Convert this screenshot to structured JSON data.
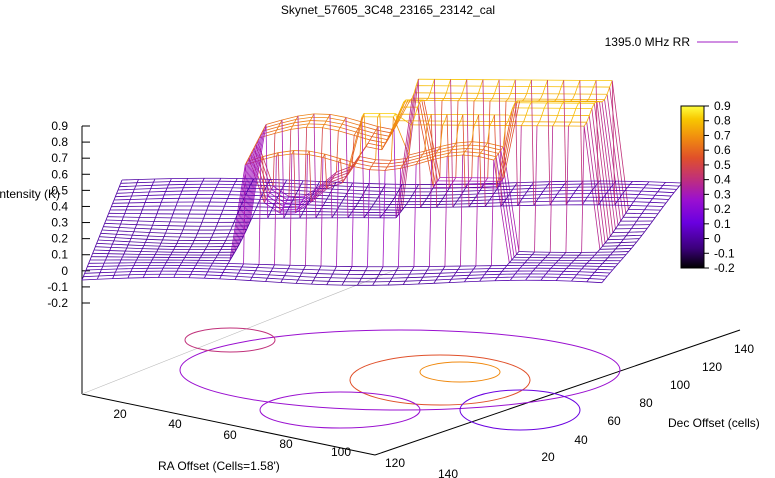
{
  "chart_data": {
    "type": "surface3d",
    "title": "Skynet_57605_3C48_23165_23142_cal",
    "legend": {
      "label": "1395.0 MHz RR",
      "placement": "top-right"
    },
    "series": [
      {
        "name": "1395.0 MHz RR"
      }
    ],
    "zlabel": "Intensity (K)",
    "xlabel": "RA Offset (Cells=1.58')",
    "ylabel": "Dec Offset (cells)",
    "zlim": [
      -0.2,
      0.9
    ],
    "z_ticks": [
      "0.9",
      "0.8",
      "0.7",
      "0.6",
      "0.5",
      "0.4",
      "0.3",
      "0.2",
      "0.1",
      "0",
      "-0.1",
      "-0.2"
    ],
    "x_ticks": [
      "20",
      "40",
      "60",
      "80",
      "100",
      "120",
      "140"
    ],
    "y_ticks": [
      "20",
      "40",
      "60",
      "80",
      "100",
      "120",
      "140"
    ],
    "colorbar": {
      "range": [
        -0.2,
        0.9
      ],
      "ticks": [
        "0.9",
        "0.8",
        "0.7",
        "0.6",
        "0.5",
        "0.4",
        "0.3",
        "0.2",
        "0.1",
        "0",
        "-0.1",
        "-0.2"
      ],
      "colors": [
        "#000000",
        "#3b007a",
        "#6a00e0",
        "#9a10d0",
        "#c0307a",
        "#e0502a",
        "#f08a10",
        "#f8c800",
        "#ffff40"
      ]
    },
    "surface": {
      "rows": 30,
      "cols": 34,
      "baseline": 0,
      "plateau_levels": [
        0.62,
        0.78,
        0.82
      ]
    }
  }
}
